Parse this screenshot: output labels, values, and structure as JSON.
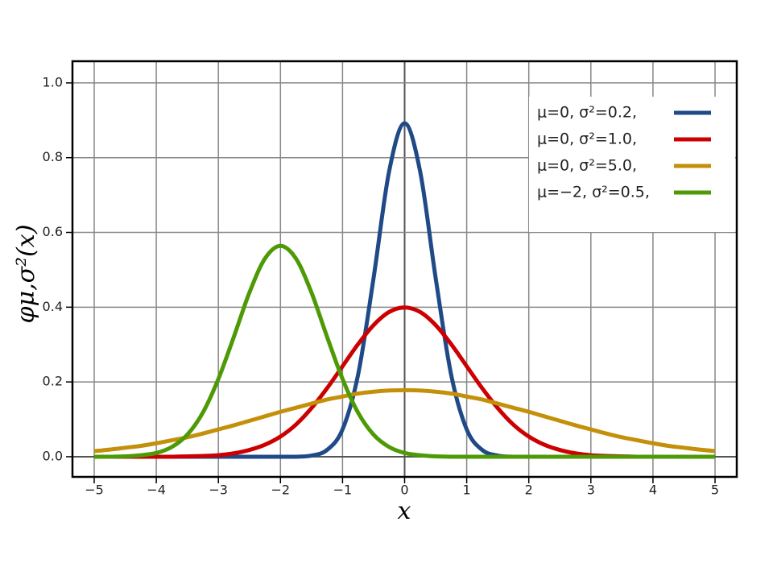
{
  "chart_data": {
    "type": "line",
    "x_label": "x",
    "y_label": "φμ,σ²(x)",
    "x": [
      -5,
      -4.75,
      -4.5,
      -4.25,
      -4,
      -3.75,
      -3.5,
      -3.25,
      -3,
      -2.75,
      -2.5,
      -2.25,
      -2,
      -1.75,
      -1.5,
      -1.25,
      -1,
      -0.75,
      -0.5,
      -0.25,
      0,
      0.25,
      0.5,
      0.75,
      1,
      1.25,
      1.5,
      1.75,
      2,
      2.25,
      2.5,
      2.75,
      3,
      3.25,
      3.5,
      3.75,
      4,
      4.25,
      4.5,
      4.75,
      5
    ],
    "series": [
      {
        "name": "μ=0,   σ²=0.2,",
        "color": "#204a87",
        "values": [
          0,
          0,
          0,
          0,
          0,
          0,
          0,
          0,
          0,
          0,
          0,
          0,
          0,
          0,
          0.003,
          0.018,
          0.073,
          0.219,
          0.478,
          0.763,
          0.892,
          0.763,
          0.478,
          0.219,
          0.073,
          0.018,
          0.003,
          0,
          0,
          0,
          0,
          0,
          0,
          0,
          0,
          0,
          0,
          0,
          0,
          0,
          0
        ]
      },
      {
        "name": "μ=0,   σ²=1.0,",
        "color": "#cc0000",
        "values": [
          0,
          0,
          0,
          0,
          0,
          0,
          0.001,
          0.002,
          0.004,
          0.009,
          0.018,
          0.032,
          0.054,
          0.086,
          0.13,
          0.183,
          0.242,
          0.301,
          0.352,
          0.387,
          0.399,
          0.387,
          0.352,
          0.301,
          0.242,
          0.183,
          0.13,
          0.086,
          0.054,
          0.032,
          0.018,
          0.009,
          0.004,
          0.002,
          0.001,
          0,
          0,
          0,
          0,
          0,
          0
        ]
      },
      {
        "name": "μ=0,   σ²=5.0,",
        "color": "#c4900a",
        "values": [
          0.015,
          0.019,
          0.024,
          0.029,
          0.036,
          0.044,
          0.052,
          0.062,
          0.073,
          0.084,
          0.096,
          0.108,
          0.12,
          0.131,
          0.142,
          0.153,
          0.161,
          0.169,
          0.174,
          0.177,
          0.178,
          0.177,
          0.174,
          0.169,
          0.161,
          0.153,
          0.142,
          0.131,
          0.12,
          0.108,
          0.096,
          0.084,
          0.073,
          0.062,
          0.052,
          0.044,
          0.036,
          0.029,
          0.024,
          0.019,
          0.015
        ]
      },
      {
        "name": "μ=−2, σ²=0.5,",
        "color": "#4e9a06",
        "values": [
          0,
          0,
          0.001,
          0.004,
          0.01,
          0.026,
          0.059,
          0.118,
          0.208,
          0.321,
          0.439,
          0.53,
          0.564,
          0.53,
          0.439,
          0.321,
          0.208,
          0.118,
          0.059,
          0.026,
          0.01,
          0.004,
          0.001,
          0,
          0,
          0,
          0,
          0,
          0,
          0,
          0,
          0,
          0,
          0,
          0,
          0,
          0,
          0,
          0,
          0,
          0
        ]
      }
    ],
    "xlim": [
      -5.35,
      5.35
    ],
    "ylim": [
      -0.054,
      1.058
    ],
    "xticks": [
      {
        "value": -5,
        "label": "−5"
      },
      {
        "value": -4,
        "label": "−4"
      },
      {
        "value": -3,
        "label": "−3"
      },
      {
        "value": -2,
        "label": "−2"
      },
      {
        "value": -1,
        "label": "−1"
      },
      0,
      1,
      2,
      3,
      4,
      5
    ],
    "yticks": [
      {
        "value": 0,
        "label": "0.0"
      },
      {
        "value": 0.2,
        "label": "0.2"
      },
      {
        "value": 0.4,
        "label": "0.4"
      },
      {
        "value": 0.6,
        "label": "0.6"
      },
      {
        "value": 0.8,
        "label": "0.8"
      },
      {
        "value": 1,
        "label": "1.0"
      }
    ],
    "grid": true,
    "legend": "upper right"
  }
}
